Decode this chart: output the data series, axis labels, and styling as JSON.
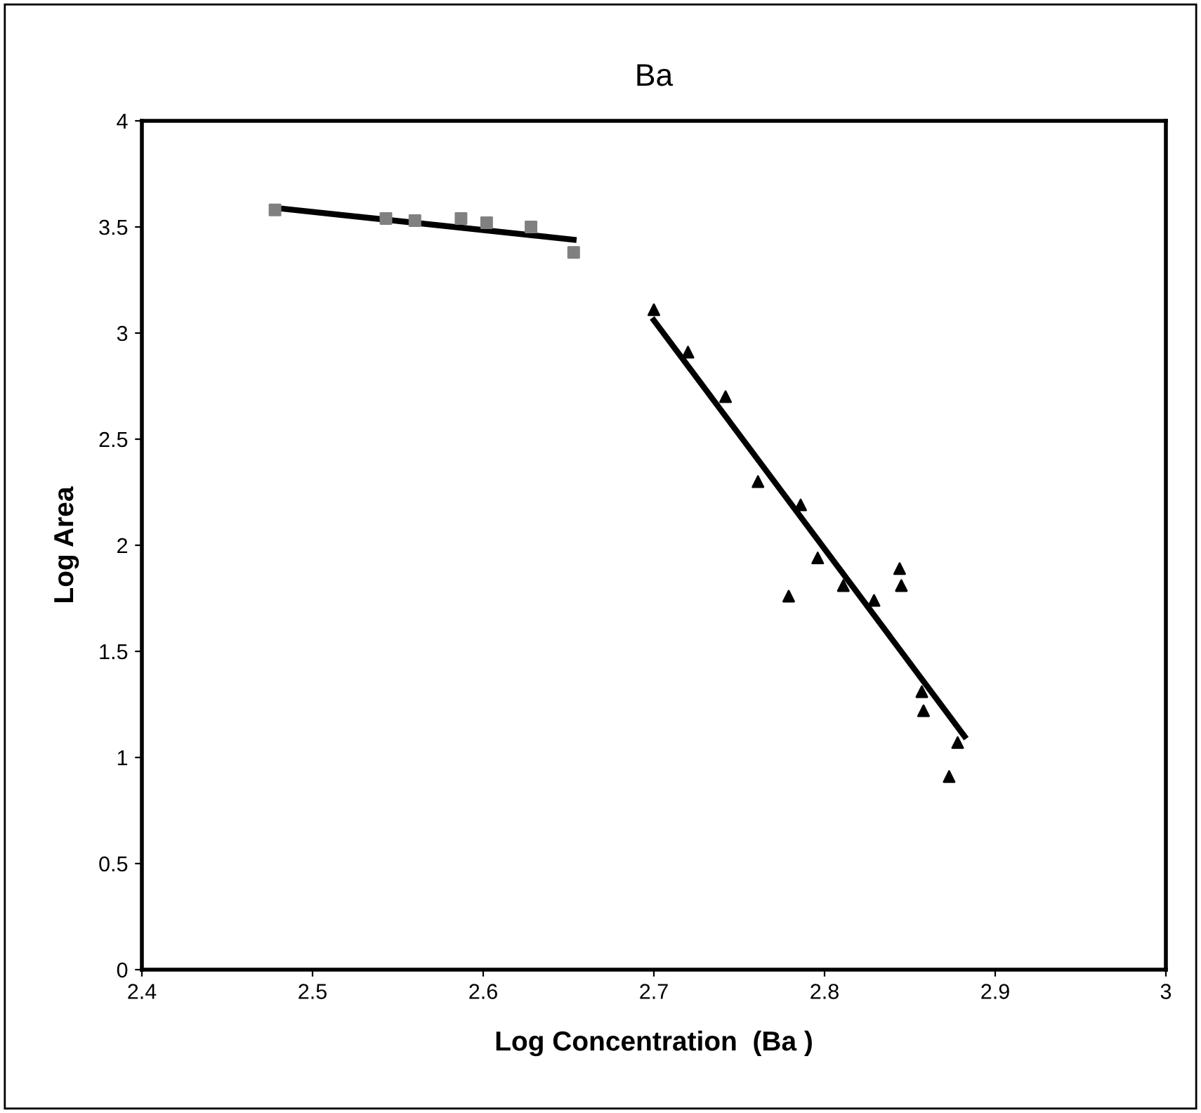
{
  "chart_data": {
    "type": "scatter",
    "title": "Ba",
    "xlabel": "Log Concentration  (Ba )",
    "ylabel": "Log Area",
    "xlim": [
      2.4,
      3
    ],
    "xticks": [
      2.4,
      2.5,
      2.6,
      2.7,
      2.8,
      2.9,
      3
    ],
    "ylim": [
      0,
      4
    ],
    "yticks": [
      0,
      0.5,
      1,
      1.5,
      2,
      2.5,
      3,
      3.5,
      4
    ],
    "grid": false,
    "legend": false,
    "series": [
      {
        "marker": "square",
        "color": "#808080",
        "x": [
          2.478,
          2.543,
          2.56,
          2.587,
          2.602,
          2.628,
          2.653
        ],
        "values": [
          3.58,
          3.54,
          3.53,
          3.54,
          3.52,
          3.5,
          3.38
        ]
      },
      {
        "type": "line",
        "marker": "none",
        "color": "#000000",
        "x": [
          2.478,
          2.653
        ],
        "values": [
          3.59,
          3.44
        ]
      },
      {
        "marker": "triangle",
        "color": "#000000",
        "x": [
          2.7,
          2.72,
          2.742,
          2.761,
          2.786,
          2.796,
          2.779,
          2.811,
          2.829,
          2.844,
          2.845,
          2.857,
          2.858,
          2.878,
          2.873
        ],
        "values": [
          3.11,
          2.91,
          2.7,
          2.3,
          2.19,
          1.94,
          1.76,
          1.81,
          1.74,
          1.89,
          1.81,
          1.31,
          1.22,
          1.07,
          0.91
        ]
      },
      {
        "type": "line",
        "marker": "none",
        "color": "#000000",
        "x": [
          2.7,
          2.882
        ],
        "values": [
          3.06,
          1.1
        ]
      }
    ]
  }
}
